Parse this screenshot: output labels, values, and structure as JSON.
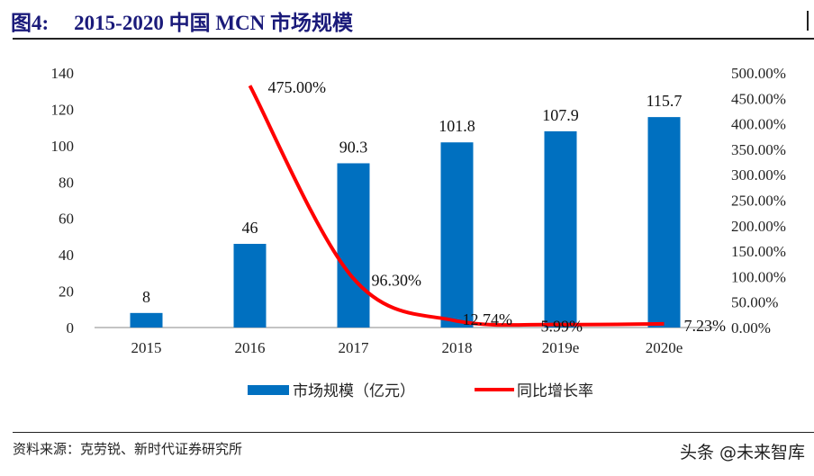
{
  "title": {
    "figure": "图4:",
    "text": "2015-2020 中国 MCN 市场规模"
  },
  "source": "资料来源：克劳锐、新时代证券研究所",
  "watermark": "头条 @未来智库",
  "colors": {
    "bar": "#0070C0",
    "line": "#FF0000",
    "title": "#1a1a7a"
  },
  "chart_data": {
    "type": "bar+line",
    "categories": [
      "2015",
      "2016",
      "2017",
      "2018",
      "2019e",
      "2020e"
    ],
    "series": [
      {
        "name": "市场规模（亿元）",
        "type": "bar",
        "axis": "left",
        "values": [
          8,
          46,
          90.3,
          101.8,
          107.9,
          115.7
        ],
        "labels": [
          "8",
          "46",
          "90.3",
          "101.8",
          "107.9",
          "115.7"
        ]
      },
      {
        "name": "同比增长率",
        "type": "line",
        "axis": "right",
        "values": [
          null,
          475.0,
          96.3,
          12.74,
          5.99,
          7.23
        ],
        "labels": [
          "",
          "475.00%",
          "96.30%",
          "12.74%",
          "5.99%",
          "7.23%"
        ]
      }
    ],
    "left_axis": {
      "ylim": [
        0,
        140
      ],
      "ticks": [
        "0",
        "20",
        "40",
        "60",
        "80",
        "100",
        "120",
        "140"
      ]
    },
    "right_axis": {
      "ylim": [
        0,
        500
      ],
      "ticks": [
        "0.00%",
        "50.00%",
        "100.00%",
        "150.00%",
        "200.00%",
        "250.00%",
        "300.00%",
        "350.00%",
        "400.00%",
        "450.00%",
        "500.00%"
      ]
    },
    "legend_position": "bottom",
    "grid": false
  }
}
